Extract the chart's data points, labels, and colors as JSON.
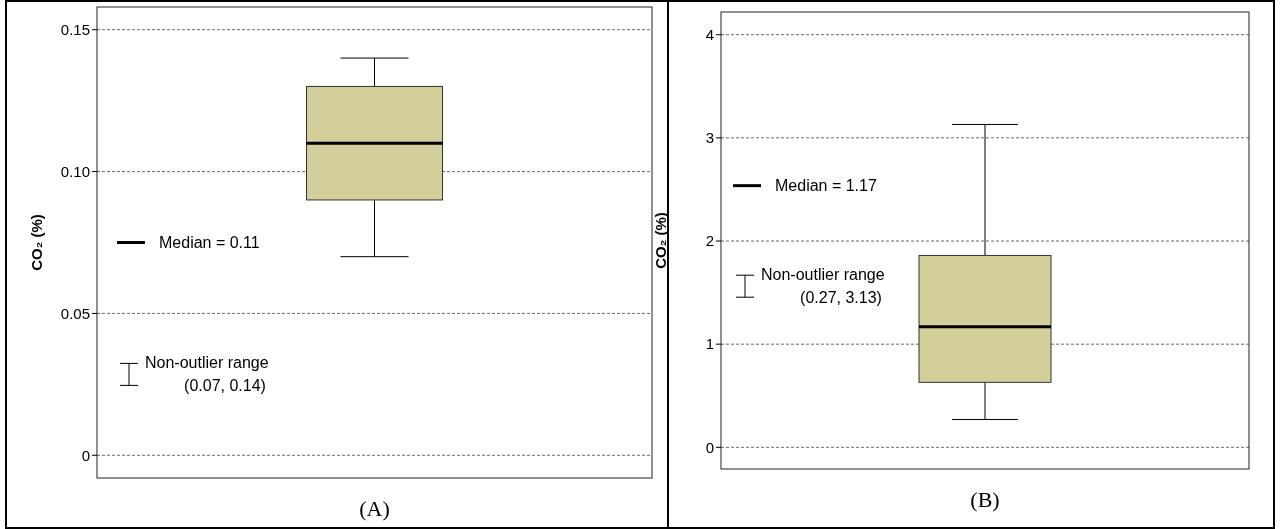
{
  "chart_data": [
    {
      "type": "box",
      "categories": [
        null
      ],
      "xlabel": "(A)",
      "ylabel": "CO₂ (%)",
      "color": "#d3cf9b",
      "boxes": [
        {
          "low": 0.07,
          "q1": 0.09,
          "median": 0.11,
          "q3": 0.13,
          "high": 0.14
        }
      ],
      "ylim": [
        -0.008,
        0.158
      ],
      "yticks": [
        {
          "value": 0,
          "label": "0"
        },
        {
          "value": 0.05,
          "label": "0.05"
        },
        {
          "value": 0.1,
          "label": "0.10"
        },
        {
          "value": 0.15,
          "label": "0.15"
        }
      ],
      "grid": "y",
      "annotations": [
        "Median = 0.11",
        "Non-outlier range",
        "(0.07, 0.14)"
      ]
    },
    {
      "type": "box",
      "categories": [
        null
      ],
      "xlabel": "(B)",
      "ylabel": "CO₂ (%)",
      "color": "#d3cf9b",
      "boxes": [
        {
          "low": 0.27,
          "q1": 0.63,
          "median": 1.17,
          "q3": 1.86,
          "high": 3.13
        }
      ],
      "ylim": [
        -0.21,
        4.22
      ],
      "yticks": [
        0,
        1,
        2,
        3,
        4
      ],
      "grid": "y",
      "annotations": [
        "Median = 1.17",
        "Non-outlier range",
        "(0.27, 3.13)"
      ]
    }
  ]
}
